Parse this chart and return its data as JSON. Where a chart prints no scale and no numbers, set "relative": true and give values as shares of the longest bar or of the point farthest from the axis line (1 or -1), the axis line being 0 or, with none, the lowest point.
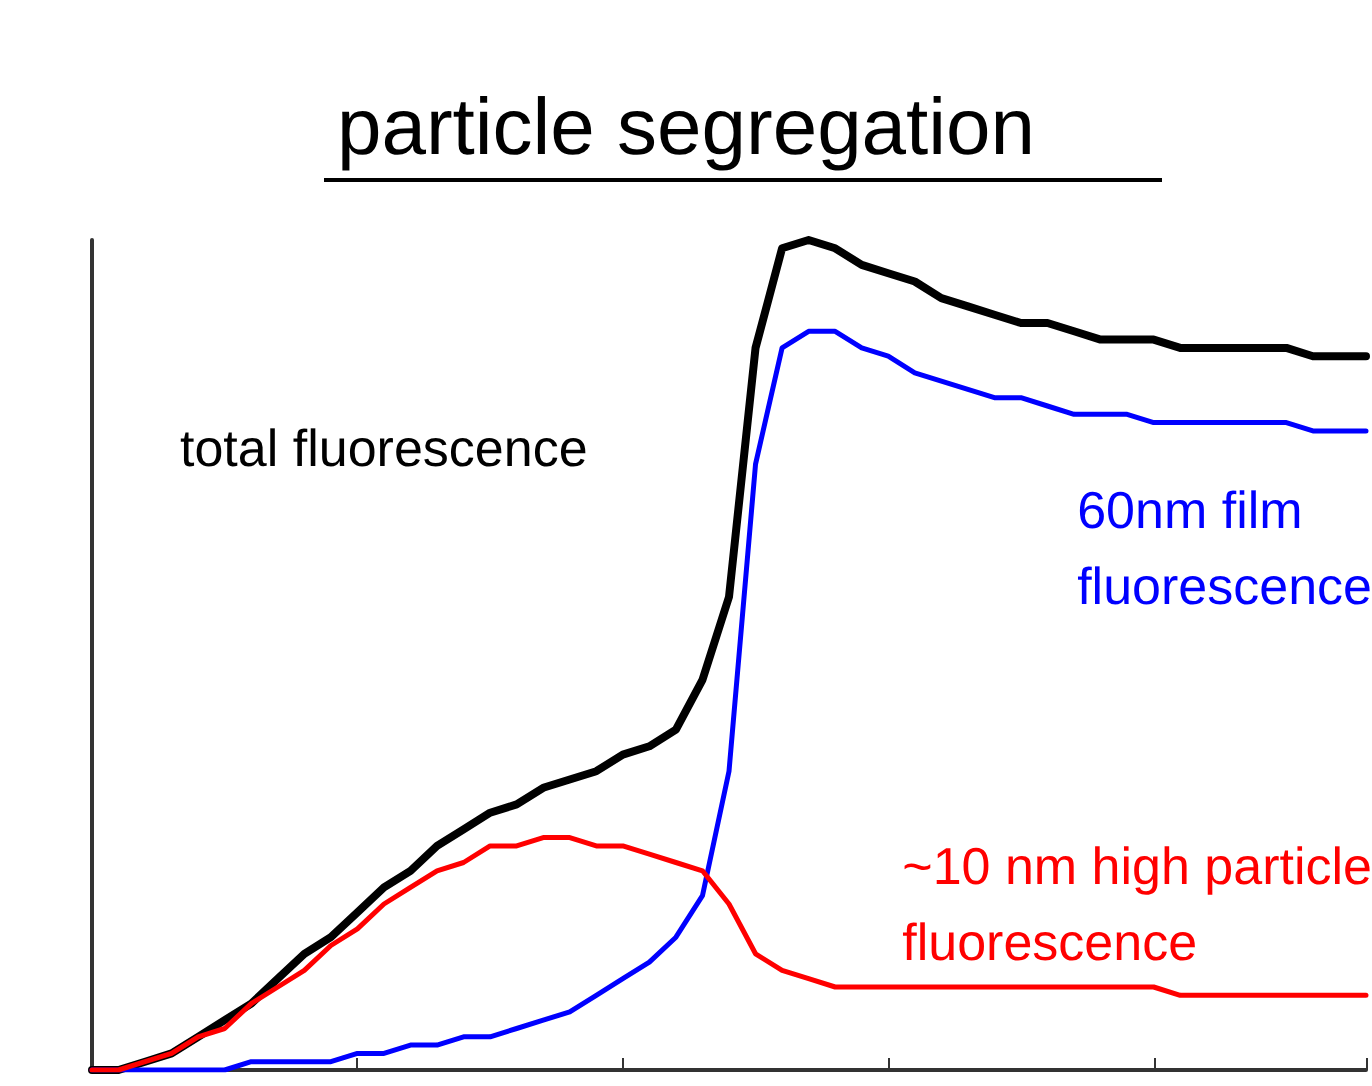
{
  "chart_data": {
    "type": "line",
    "title": "particle segregation",
    "relative": true,
    "legend": false,
    "grid": false,
    "marker": "none",
    "line_style": "solid",
    "categories": [
      null,
      null,
      null,
      null,
      null,
      null,
      null,
      null,
      null,
      null,
      null,
      null,
      null,
      null,
      null,
      null,
      null,
      null,
      null,
      null,
      null,
      null,
      null,
      null,
      null,
      null,
      null,
      null,
      null,
      null,
      null,
      null,
      null,
      null,
      null,
      null,
      null,
      null,
      null,
      null,
      null,
      null,
      null,
      null,
      null,
      null,
      null,
      null,
      null
    ],
    "series": [
      {
        "name": "total fluorescence",
        "color": "#000000",
        "values": [
          0,
          0.0,
          0.01,
          0.02,
          0.04,
          0.06,
          0.08,
          0.11,
          0.14,
          0.16,
          0.19,
          0.22,
          0.24,
          0.27,
          0.29,
          0.31,
          0.32,
          0.34,
          0.35,
          0.36,
          0.38,
          0.39,
          0.41,
          0.47,
          0.57,
          0.87,
          0.99,
          1.0,
          0.99,
          0.97,
          0.96,
          0.95,
          0.93,
          0.92,
          0.91,
          0.9,
          0.9,
          0.89,
          0.88,
          0.88,
          0.88,
          0.87,
          0.87,
          0.87,
          0.87,
          0.87,
          0.86,
          0.86,
          0.86
        ]
      },
      {
        "name": "60nm film\nfluorescence",
        "color": "#0000ff",
        "values": [
          0,
          0,
          0,
          0.0,
          0.0,
          0.0,
          0.01,
          0.01,
          0.01,
          0.01,
          0.02,
          0.02,
          0.03,
          0.03,
          0.04,
          0.04,
          0.05,
          0.06,
          0.07,
          0.09,
          0.11,
          0.13,
          0.16,
          0.21,
          0.36,
          0.73,
          0.87,
          0.89,
          0.89,
          0.87,
          0.86,
          0.84,
          0.83,
          0.82,
          0.81,
          0.81,
          0.8,
          0.79,
          0.79,
          0.79,
          0.78,
          0.78,
          0.78,
          0.78,
          0.78,
          0.78,
          0.77,
          0.77,
          0.77
        ]
      },
      {
        "name": "~10 nm high particle\nfluorescence",
        "color": "#ff0000",
        "values": [
          0,
          0.0,
          0.01,
          0.02,
          0.04,
          0.05,
          0.08,
          0.1,
          0.12,
          0.15,
          0.17,
          0.2,
          0.22,
          0.24,
          0.25,
          0.27,
          0.27,
          0.28,
          0.28,
          0.27,
          0.27,
          0.26,
          0.25,
          0.24,
          0.2,
          0.14,
          0.12,
          0.11,
          0.1,
          0.1,
          0.1,
          0.1,
          0.1,
          0.1,
          0.1,
          0.1,
          0.1,
          0.1,
          0.1,
          0.1,
          0.1,
          0.09,
          0.09,
          0.09,
          0.09,
          0.09,
          0.09,
          0.09,
          0.09
        ]
      }
    ]
  }
}
